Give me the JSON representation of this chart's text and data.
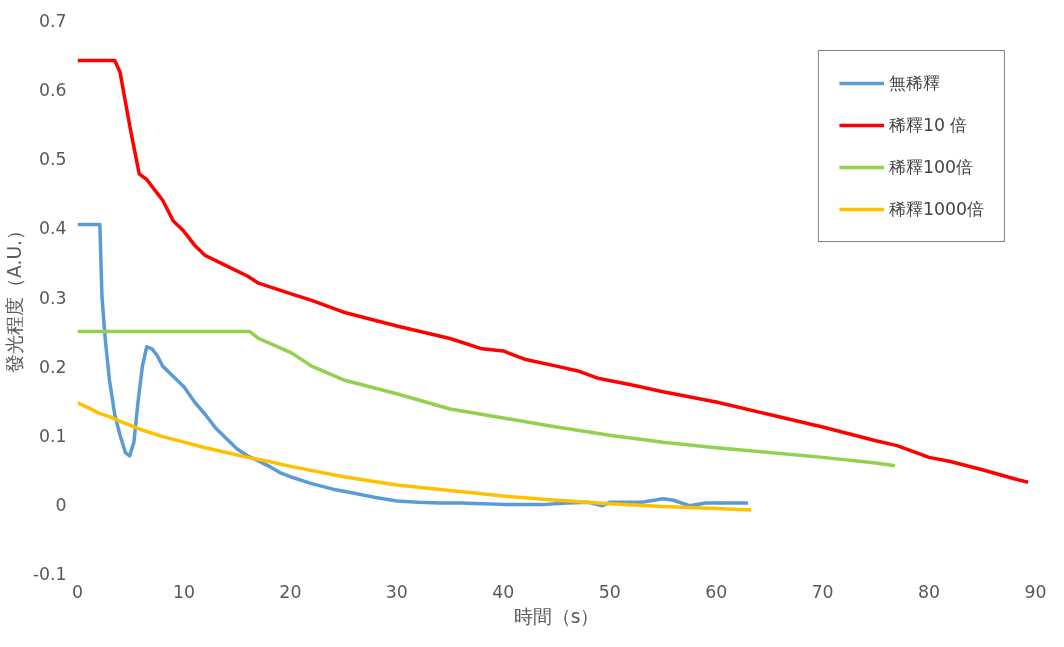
{
  "chart_data": {
    "type": "line",
    "xlabel": "時間（s）",
    "ylabel": "發光程度（A.U.）",
    "xlim": [
      0,
      90
    ],
    "ylim": [
      -0.1,
      0.7
    ],
    "xticks": [
      0,
      10,
      20,
      30,
      40,
      50,
      60,
      70,
      80,
      90
    ],
    "yticks": [
      -0.1,
      0,
      0.1,
      0.2,
      0.3,
      0.4,
      0.5,
      0.6,
      0.7
    ],
    "grid": false,
    "legend": "top right",
    "marker": "none",
    "line_style": "solid",
    "series": [
      {
        "name": "無稀釋",
        "color": "#5b9bd5",
        "x": [
          0,
          2.1,
          2.3,
          2.6,
          3,
          3.5,
          4,
          4.5,
          4.9,
          5.3,
          5.7,
          6.1,
          6.5,
          7,
          7.5,
          8,
          9,
          10,
          11,
          12,
          13,
          14,
          15,
          16,
          17,
          18,
          19,
          20,
          22,
          24,
          26,
          28,
          30,
          32,
          34,
          36,
          38,
          40,
          44,
          46,
          48,
          49.3,
          50,
          53,
          55,
          56,
          57.5,
          59,
          61,
          63
        ],
        "values": [
          0.405,
          0.405,
          0.3,
          0.24,
          0.18,
          0.13,
          0.1,
          0.075,
          0.07,
          0.09,
          0.15,
          0.2,
          0.228,
          0.225,
          0.215,
          0.2,
          0.185,
          0.17,
          0.148,
          0.13,
          0.11,
          0.095,
          0.08,
          0.07,
          0.063,
          0.055,
          0.046,
          0.04,
          0.03,
          0.022,
          0.016,
          0.01,
          0.005,
          0.003,
          0.002,
          0.002,
          0.001,
          0,
          0,
          0.002,
          0.003,
          -0.002,
          0.003,
          0.003,
          0.008,
          0.006,
          -0.002,
          0.002,
          0.002,
          0.002
        ]
      },
      {
        "name": "稀釋10 倍",
        "color": "#ff0000",
        "x": [
          0,
          3.5,
          4,
          5,
          5.8,
          6.5,
          7.5,
          8,
          9,
          10,
          11,
          12,
          14,
          16,
          17,
          20,
          22,
          25,
          30,
          35,
          38,
          40,
          42,
          45,
          47,
          49,
          52,
          55,
          60,
          65,
          70,
          75,
          77,
          80,
          82,
          85,
          88,
          89.3
        ],
        "values": [
          0.642,
          0.642,
          0.625,
          0.54,
          0.478,
          0.47,
          0.45,
          0.44,
          0.41,
          0.395,
          0.375,
          0.36,
          0.345,
          0.33,
          0.32,
          0.305,
          0.295,
          0.278,
          0.258,
          0.24,
          0.225,
          0.222,
          0.21,
          0.2,
          0.193,
          0.182,
          0.173,
          0.163,
          0.148,
          0.13,
          0.112,
          0.092,
          0.085,
          0.068,
          0.062,
          0.05,
          0.037,
          0.032
        ]
      },
      {
        "name": "稀釋100倍",
        "color": "#92d050",
        "x": [
          0,
          16.2,
          17,
          20,
          22,
          25,
          30,
          35,
          40,
          45,
          50,
          55,
          60,
          65,
          70,
          75,
          76.8
        ],
        "values": [
          0.25,
          0.25,
          0.24,
          0.22,
          0.2,
          0.18,
          0.16,
          0.138,
          0.125,
          0.112,
          0.1,
          0.09,
          0.082,
          0.075,
          0.068,
          0.06,
          0.056
        ]
      },
      {
        "name": "稀釋1000倍",
        "color": "#ffc000",
        "x": [
          0,
          1,
          2,
          3,
          4,
          6,
          8,
          10,
          12,
          14,
          16,
          18,
          20,
          25,
          30,
          35,
          40,
          45,
          50,
          55,
          60,
          63.3
        ],
        "values": [
          0.147,
          0.14,
          0.132,
          0.127,
          0.12,
          0.108,
          0.098,
          0.09,
          0.082,
          0.075,
          0.068,
          0.062,
          0.055,
          0.04,
          0.028,
          0.02,
          0.012,
          0.006,
          0.001,
          -0.003,
          -0.006,
          -0.008
        ]
      }
    ]
  }
}
